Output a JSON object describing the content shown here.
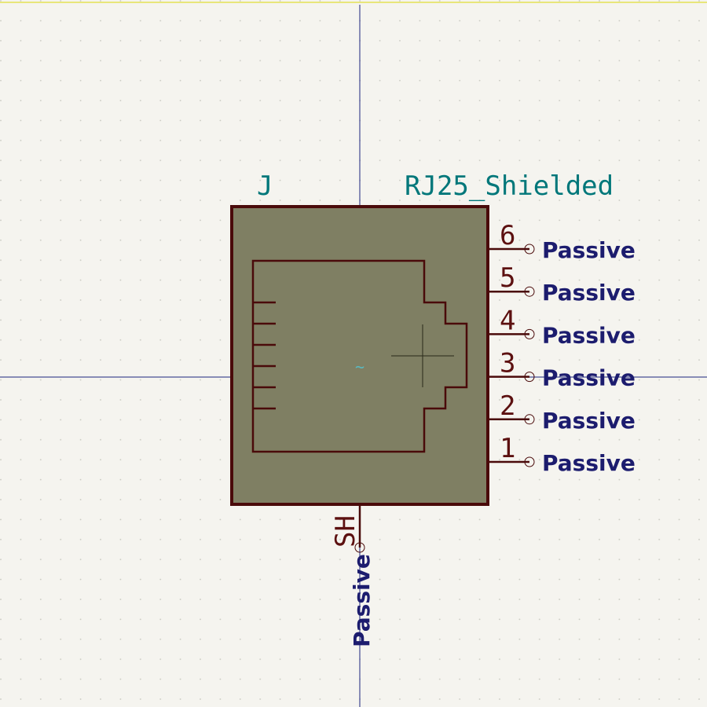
{
  "symbol": {
    "reference": "J",
    "value": "RJ25_Shielded",
    "center_marker": "~"
  },
  "pins": [
    {
      "number": "6",
      "type": "Passive"
    },
    {
      "number": "5",
      "type": "Passive"
    },
    {
      "number": "4",
      "type": "Passive"
    },
    {
      "number": "3",
      "type": "Passive"
    },
    {
      "number": "2",
      "type": "Passive"
    },
    {
      "number": "1",
      "type": "Passive"
    }
  ],
  "shield_pin": {
    "number": "SH",
    "type": "Passive"
  },
  "colors": {
    "background": "#f5f4ef",
    "grid_dot": "#c8c8c0",
    "axis": "#1a237e",
    "body_fill": "#7f7f63",
    "outline": "#4a0a0a",
    "pin_text": "#5c1010",
    "value_text": "#00777a",
    "pin_type_text": "#1c1c6e",
    "top_border": "#e8e67a"
  }
}
